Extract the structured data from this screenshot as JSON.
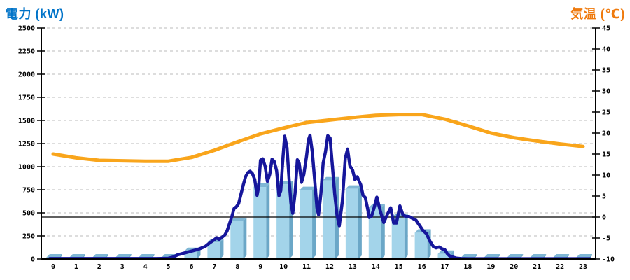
{
  "header": {
    "left_title": "電力 (kW)",
    "right_title": "気温 (℃)"
  },
  "colors": {
    "left_title": "#0073C8",
    "right_title": "#EF7A0D",
    "bar_front": "#A3D4EA",
    "bar_top": "#7FB7D5",
    "bar_side": "#6BA7C7",
    "power_line": "#16169B",
    "temp_line": "#F9A51B",
    "grid": "#BBBBBB",
    "axis": "#000000"
  },
  "chart_data": {
    "type": "combo",
    "title": "",
    "x_axis": {
      "tick_labels": [
        "0",
        "1",
        "2",
        "3",
        "4",
        "5",
        "6",
        "7",
        "8",
        "9",
        "10",
        "11",
        "12",
        "13",
        "14",
        "15",
        "16",
        "17",
        "18",
        "19",
        "20",
        "21",
        "22",
        "23"
      ]
    },
    "left_axis": {
      "label": "電力 (kW)",
      "min": 0,
      "max": 2500,
      "step": 250,
      "tick_labels": [
        "2500",
        "2250",
        "2000",
        "1750",
        "1500",
        "1250",
        "1000",
        "750",
        "500",
        "250",
        "0"
      ]
    },
    "right_axis": {
      "label": "気温 (℃)",
      "min": -10,
      "max": 45,
      "step": 5,
      "tick_labels": [
        "45",
        "40",
        "35",
        "30",
        "25",
        "20",
        "15",
        "10",
        "5",
        "0",
        "-5",
        "-10"
      ]
    },
    "reference_line": {
      "axis": "right",
      "value": 0
    },
    "grid": "dashed-horizontal",
    "legend": "none",
    "series": [
      {
        "name": "hourly-power-bars",
        "type": "bar",
        "axis": "left",
        "categories": [
          0,
          1,
          2,
          3,
          4,
          5,
          6,
          7,
          8,
          9,
          10,
          11,
          12,
          13,
          14,
          15,
          16,
          17,
          18,
          19,
          20,
          21,
          22,
          23
        ],
        "values": [
          15,
          15,
          15,
          15,
          15,
          15,
          85,
          180,
          410,
          780,
          810,
          745,
          850,
          760,
          555,
          450,
          285,
          55,
          15,
          15,
          15,
          15,
          15,
          15
        ]
      },
      {
        "name": "instant-power-line",
        "type": "line",
        "axis": "left",
        "points": [
          [
            -0.15,
            5
          ],
          [
            0.5,
            5
          ],
          [
            1,
            5
          ],
          [
            1.5,
            5
          ],
          [
            2,
            5
          ],
          [
            2.5,
            5
          ],
          [
            3,
            5
          ],
          [
            3.5,
            5
          ],
          [
            4,
            5
          ],
          [
            4.5,
            5
          ],
          [
            5,
            8
          ],
          [
            5.2,
            20
          ],
          [
            5.4,
            45
          ],
          [
            5.7,
            65
          ],
          [
            6.0,
            85
          ],
          [
            6.3,
            105
          ],
          [
            6.6,
            135
          ],
          [
            6.8,
            175
          ],
          [
            7.0,
            210
          ],
          [
            7.1,
            230
          ],
          [
            7.2,
            212
          ],
          [
            7.3,
            230
          ],
          [
            7.45,
            260
          ],
          [
            7.55,
            305
          ],
          [
            7.65,
            380
          ],
          [
            7.75,
            455
          ],
          [
            7.85,
            545
          ],
          [
            7.95,
            565
          ],
          [
            8.05,
            600
          ],
          [
            8.15,
            700
          ],
          [
            8.25,
            800
          ],
          [
            8.35,
            890
          ],
          [
            8.45,
            935
          ],
          [
            8.55,
            950
          ],
          [
            8.65,
            925
          ],
          [
            8.75,
            860
          ],
          [
            8.85,
            690
          ],
          [
            8.92,
            780
          ],
          [
            9.0,
            1070
          ],
          [
            9.1,
            1085
          ],
          [
            9.2,
            1005
          ],
          [
            9.3,
            840
          ],
          [
            9.4,
            915
          ],
          [
            9.5,
            1080
          ],
          [
            9.6,
            1055
          ],
          [
            9.7,
            955
          ],
          [
            9.8,
            685
          ],
          [
            9.88,
            740
          ],
          [
            9.97,
            1080
          ],
          [
            10.05,
            1330
          ],
          [
            10.15,
            1205
          ],
          [
            10.25,
            830
          ],
          [
            10.32,
            610
          ],
          [
            10.4,
            495
          ],
          [
            10.5,
            710
          ],
          [
            10.6,
            1075
          ],
          [
            10.68,
            1035
          ],
          [
            10.78,
            830
          ],
          [
            10.88,
            915
          ],
          [
            11.0,
            1115
          ],
          [
            11.08,
            1290
          ],
          [
            11.15,
            1340
          ],
          [
            11.25,
            1155
          ],
          [
            11.35,
            860
          ],
          [
            11.45,
            555
          ],
          [
            11.52,
            480
          ],
          [
            11.62,
            705
          ],
          [
            11.72,
            1040
          ],
          [
            11.82,
            1160
          ],
          [
            11.92,
            1335
          ],
          [
            12.02,
            1310
          ],
          [
            12.12,
            1010
          ],
          [
            12.22,
            705
          ],
          [
            12.32,
            480
          ],
          [
            12.42,
            360
          ],
          [
            12.55,
            620
          ],
          [
            12.68,
            1090
          ],
          [
            12.78,
            1190
          ],
          [
            12.88,
            1010
          ],
          [
            13.0,
            960
          ],
          [
            13.1,
            860
          ],
          [
            13.2,
            890
          ],
          [
            13.35,
            805
          ],
          [
            13.45,
            690
          ],
          [
            13.55,
            665
          ],
          [
            13.65,
            545
          ],
          [
            13.72,
            450
          ],
          [
            13.82,
            465
          ],
          [
            13.92,
            545
          ],
          [
            14.05,
            670
          ],
          [
            14.2,
            520
          ],
          [
            14.35,
            395
          ],
          [
            14.5,
            480
          ],
          [
            14.65,
            555
          ],
          [
            14.78,
            390
          ],
          [
            14.9,
            390
          ],
          [
            15.05,
            575
          ],
          [
            15.18,
            480
          ],
          [
            15.3,
            460
          ],
          [
            15.45,
            460
          ],
          [
            15.6,
            440
          ],
          [
            15.75,
            420
          ],
          [
            15.9,
            365
          ],
          [
            16.05,
            310
          ],
          [
            16.2,
            275
          ],
          [
            16.35,
            195
          ],
          [
            16.5,
            135
          ],
          [
            16.62,
            120
          ],
          [
            16.75,
            130
          ],
          [
            16.88,
            110
          ],
          [
            17.0,
            100
          ],
          [
            17.1,
            60
          ],
          [
            17.2,
            35
          ],
          [
            17.35,
            20
          ],
          [
            17.5,
            10
          ],
          [
            17.7,
            5
          ],
          [
            18,
            3
          ],
          [
            19,
            3
          ],
          [
            20,
            3
          ],
          [
            21,
            3
          ],
          [
            22,
            3
          ],
          [
            23.3,
            3
          ]
        ]
      },
      {
        "name": "temperature-line",
        "type": "line",
        "axis": "right",
        "x_hours": [
          0,
          1,
          2,
          3,
          4,
          5,
          6,
          7,
          8,
          9,
          10,
          11,
          12,
          13,
          14,
          15,
          16,
          17,
          18,
          19,
          20,
          21,
          22,
          23
        ],
        "values": [
          15.0,
          14.1,
          13.5,
          13.4,
          13.3,
          13.3,
          14.2,
          15.9,
          17.9,
          19.8,
          21.2,
          22.5,
          23.1,
          23.7,
          24.2,
          24.4,
          24.4,
          23.3,
          21.7,
          20.0,
          18.9,
          18.1,
          17.4,
          16.8
        ]
      }
    ]
  }
}
